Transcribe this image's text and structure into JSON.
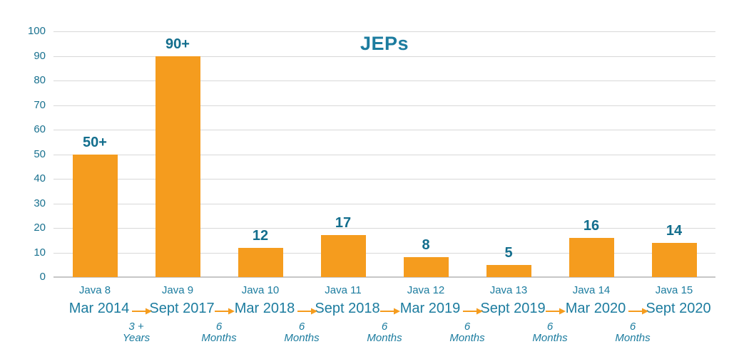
{
  "chart_data": {
    "type": "bar",
    "title": "JEPs",
    "categories": [
      "Java 8",
      "Java 9",
      "Java 10",
      "Java 11",
      "Java 12",
      "Java 13",
      "Java 14",
      "Java 15"
    ],
    "values": [
      50,
      90,
      12,
      17,
      8,
      5,
      16,
      14
    ],
    "bar_value_labels": [
      "50+",
      "90+",
      "12",
      "17",
      "8",
      "5",
      "16",
      "14"
    ],
    "release_dates": [
      "Mar 2014",
      "Sept 2017",
      "Mar 2018",
      "Sept 2018",
      "Mar 2019",
      "Sept 2019",
      "Mar 2020",
      "Sept 2020"
    ],
    "release_intervals": [
      {
        "line1": "3 +",
        "line2": "Years"
      },
      {
        "line1": "6",
        "line2": "Months"
      },
      {
        "line1": "6",
        "line2": "Months"
      },
      {
        "line1": "6",
        "line2": "Months"
      },
      {
        "line1": "6",
        "line2": "Months"
      },
      {
        "line1": "6",
        "line2": "Months"
      },
      {
        "line1": "6",
        "line2": "Months"
      }
    ],
    "xlabel": "",
    "ylabel": "",
    "ylim": [
      0,
      100
    ],
    "yticks": [
      0,
      10,
      20,
      30,
      40,
      50,
      60,
      70,
      80,
      90,
      100
    ],
    "grid": "horizontal",
    "legend": "none",
    "colors": {
      "bar_orange": "#F59C1E",
      "arrow_orange": "#F59C1E",
      "value_teal": "#136E8D",
      "axis_teal": "#19718F",
      "label_teal": "#1C7C9F",
      "title_teal": "#1C7C9F",
      "gridline_gray": "#D8D8D8",
      "baseline_gray": "#C7C7C7"
    }
  }
}
